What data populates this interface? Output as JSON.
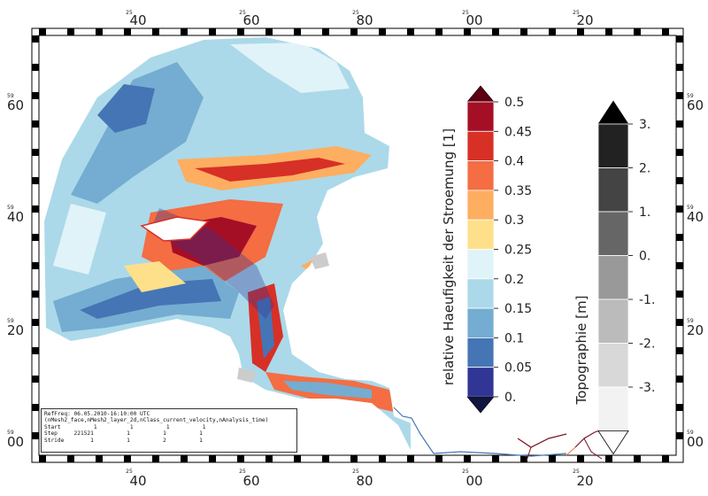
{
  "map": {
    "lon_ticks_top": [
      {
        "label": "40",
        "minute": "25"
      },
      {
        "label": "60",
        "minute": "25"
      },
      {
        "label": "80",
        "minute": "25"
      },
      {
        "label": "00",
        "minute": "25"
      },
      {
        "label": "20",
        "minute": "25"
      }
    ],
    "lon_ticks_bottom": [
      {
        "label": "40",
        "minute": "25"
      },
      {
        "label": "60",
        "minute": "25"
      },
      {
        "label": "80",
        "minute": "25"
      },
      {
        "label": "00",
        "minute": "25"
      },
      {
        "label": "20",
        "minute": "25"
      }
    ],
    "lat_ticks_left": [
      {
        "label": "60",
        "minute": "59"
      },
      {
        "label": "40",
        "minute": "59"
      },
      {
        "label": "20",
        "minute": "59"
      },
      {
        "label": "00",
        "minute": "59"
      }
    ],
    "lat_ticks_right": [
      {
        "label": "60",
        "minute": "59"
      },
      {
        "label": "40",
        "minute": "59"
      },
      {
        "label": "20",
        "minute": "59"
      },
      {
        "label": "00",
        "minute": "59"
      }
    ]
  },
  "legend_frequency": {
    "title": "relative Haeufigkeit der Stroemung [1]",
    "labels": [
      "0.5",
      "0.45",
      "0.4",
      "0.35",
      "0.3",
      "0.25",
      "0.2",
      "0.15",
      "0.1",
      "0.05",
      "0."
    ],
    "colors": [
      "#a50f26",
      "#d73027",
      "#f46d43",
      "#fdae61",
      "#fee08b",
      "#e0f3f8",
      "#abd9e9",
      "#74add1",
      "#4575b4",
      "#313695"
    ],
    "arrow_top_color": "#5e0010",
    "arrow_bottom_color": "#10163f"
  },
  "legend_topo": {
    "title": "Topographie [m]",
    "labels": [
      "3.",
      "2.",
      "1.",
      "0.",
      "-1.",
      "-2.",
      "-3."
    ],
    "colors": [
      "#222222",
      "#444444",
      "#666666",
      "#999999",
      "#bbbbbb",
      "#d8d8d8",
      "#f2f2f2"
    ],
    "arrow_top_color": "#000000",
    "arrow_bottom_color": "#ffffff"
  },
  "info": {
    "line1": "RefFreq: 06.05.2010-16:10:00 UTC",
    "line2": "(nMesh2_face,nMesh2_layer_2d,nClass_current_velocity,nAnalysis_time)",
    "start": "Start          1          1          1          1",
    "step": "Step     221521          1          1          1",
    "stride": "Stride        1          1          2          1"
  }
}
